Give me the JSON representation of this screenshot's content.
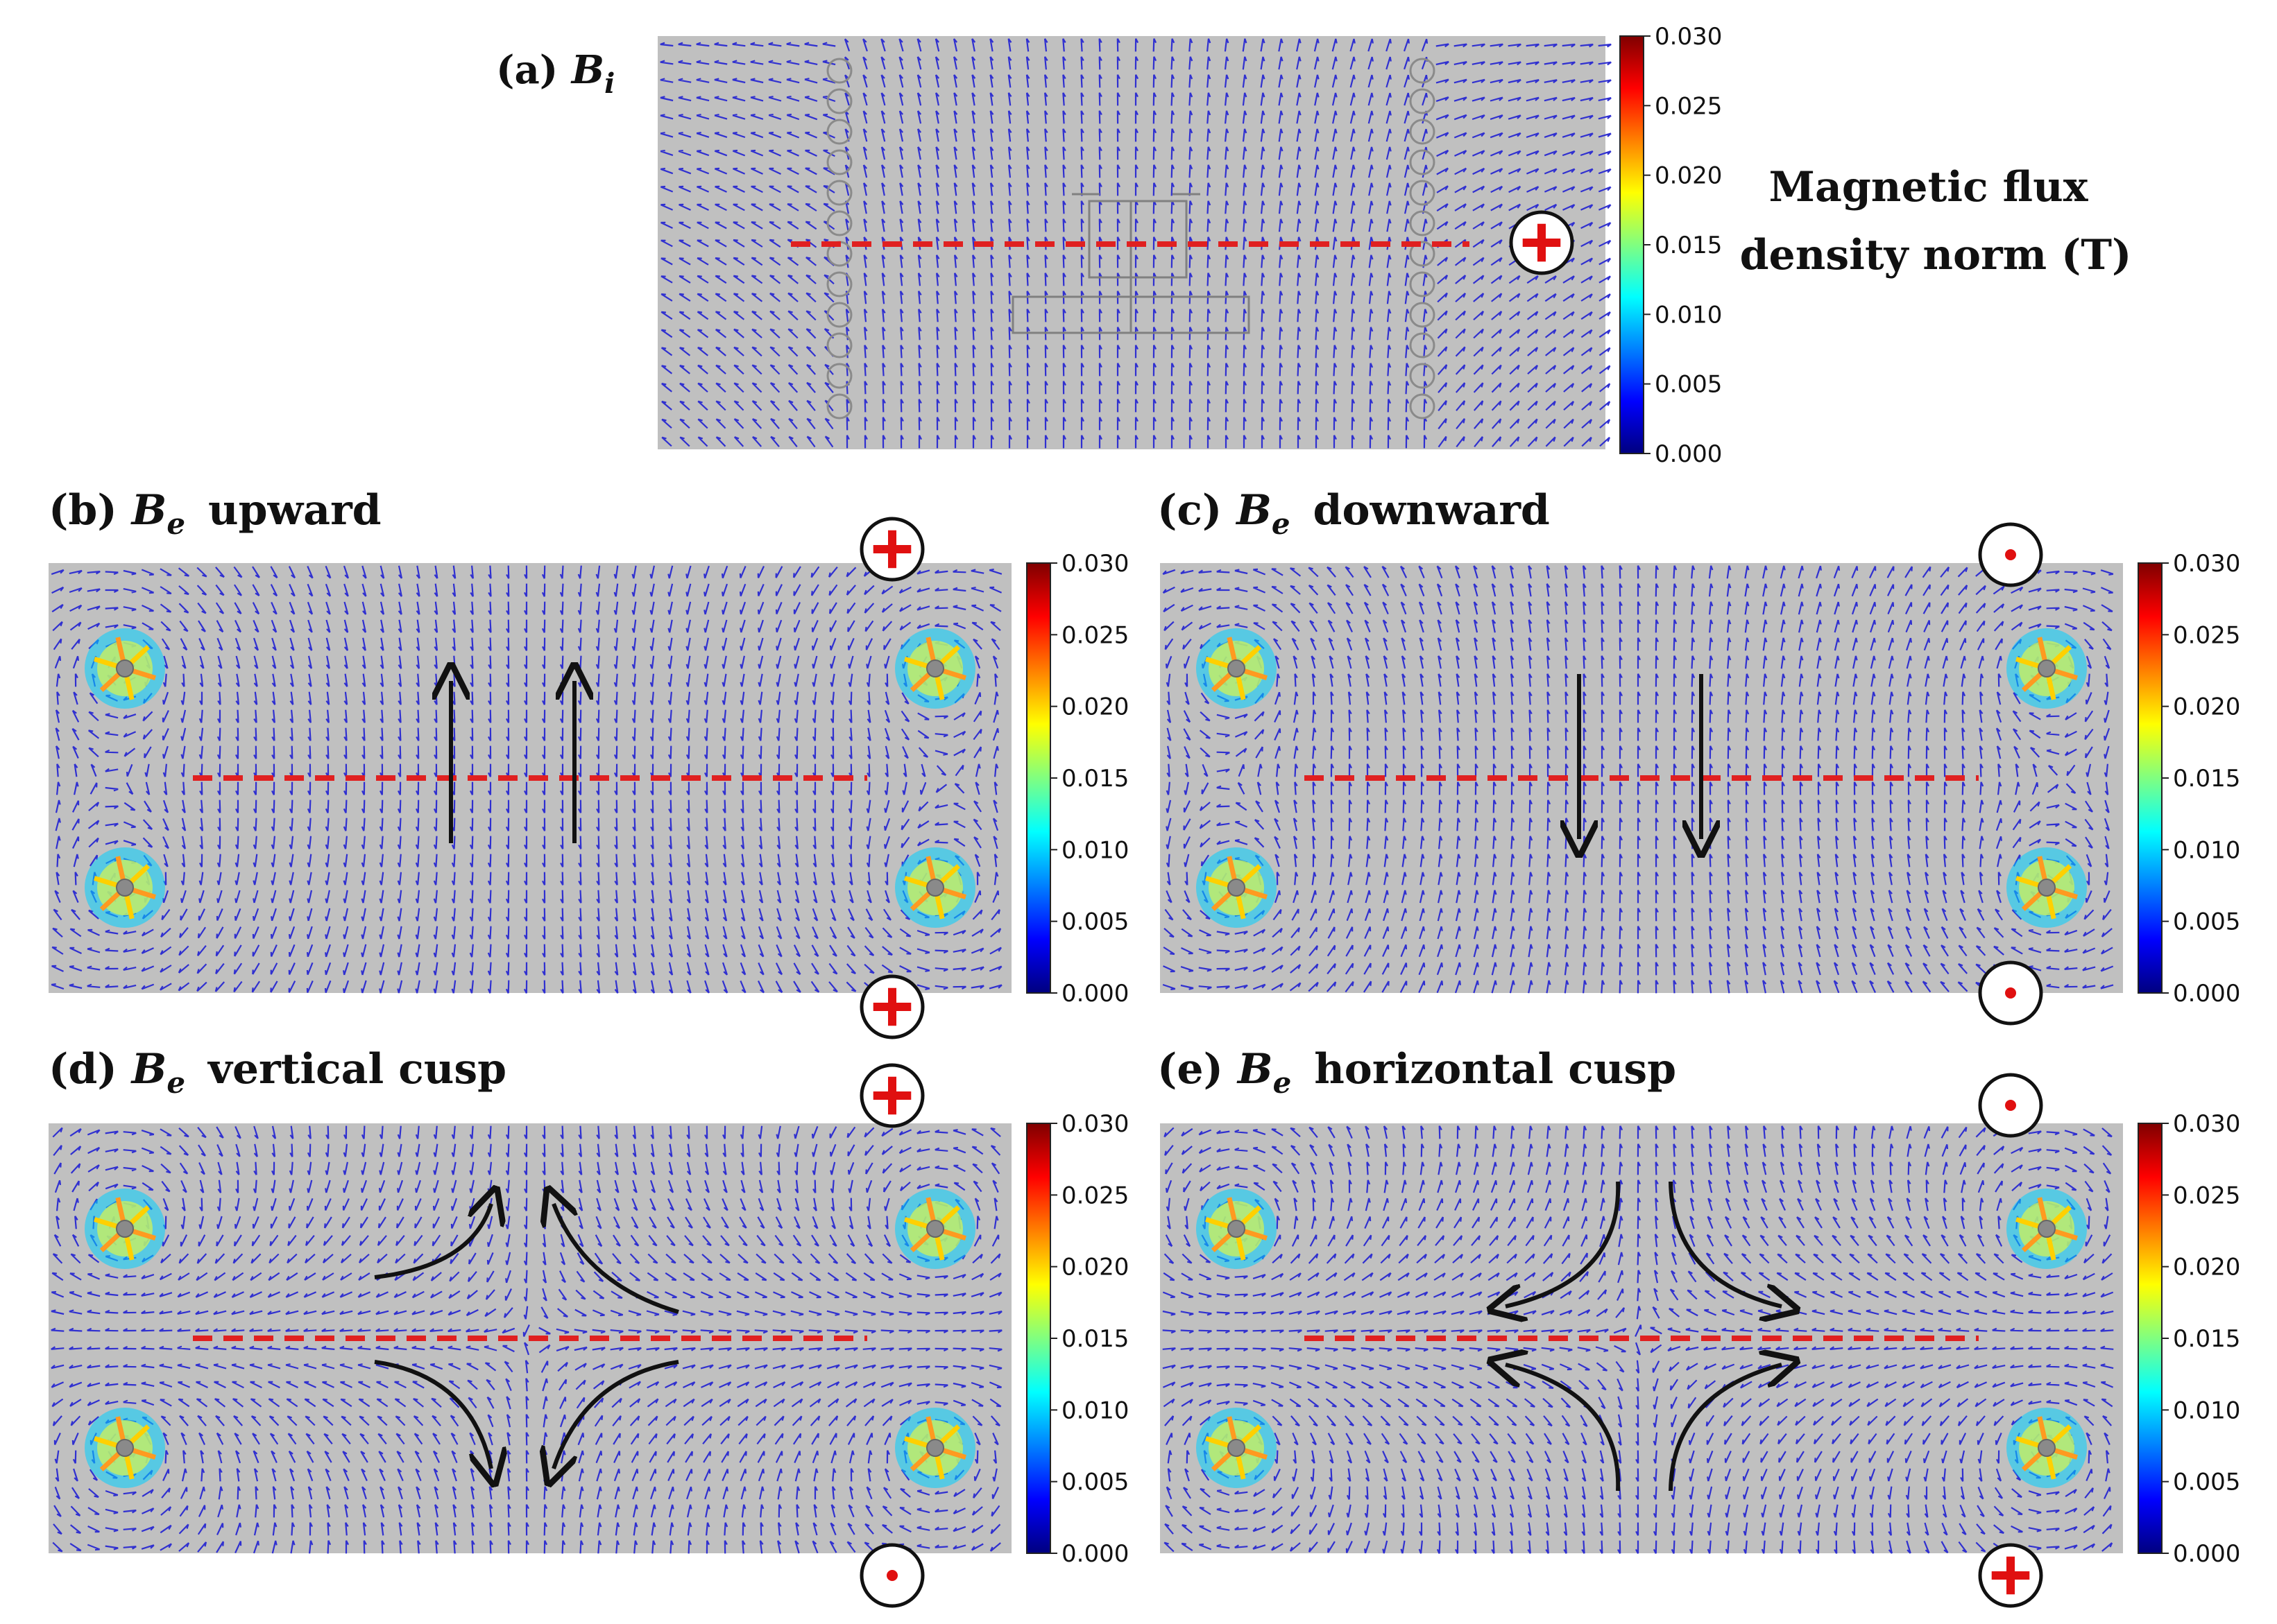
{
  "figure_title": "Magnetic flux density norm (T)",
  "colorbar": {
    "ticks": [
      "0.030",
      "0.025",
      "0.020",
      "0.015",
      "0.010",
      "0.005",
      "0.000"
    ],
    "colormap": [
      "#00007f",
      "#0000ff",
      "#0080ff",
      "#00ffff",
      "#80ff80",
      "#ffff00",
      "#ff8000",
      "#ff0000",
      "#7f0000"
    ],
    "range": [
      0.0,
      0.03
    ]
  },
  "panels": [
    {
      "id": "a",
      "label": "(a)",
      "symbol": "B",
      "subscript": "i",
      "desc": "",
      "field": "uniform"
    },
    {
      "id": "b",
      "label": "(b)",
      "symbol": "B",
      "subscript": "e",
      "desc": "upward",
      "field": "upward"
    },
    {
      "id": "c",
      "label": "(c)",
      "symbol": "B",
      "subscript": "e",
      "desc": "downward",
      "field": "downward"
    },
    {
      "id": "d",
      "label": "(d)",
      "symbol": "B",
      "subscript": "e",
      "desc": "vertical cusp",
      "field": "vertical-cusp"
    },
    {
      "id": "e",
      "label": "(e)",
      "symbol": "B",
      "subscript": "e",
      "desc": "horizontal cusp",
      "field": "horizontal-cusp"
    }
  ],
  "current_markers": {
    "a": [
      "cross"
    ],
    "b": [
      "cross",
      "cross"
    ],
    "c": [
      "dot",
      "dot"
    ],
    "d": [
      "cross",
      "dot"
    ],
    "e": [
      "dot",
      "cross"
    ]
  },
  "colors": {
    "background": "#c0c0c0",
    "arrow": "#3030d0",
    "dashed_line": "#e02020",
    "marker_red": "#e01010"
  }
}
